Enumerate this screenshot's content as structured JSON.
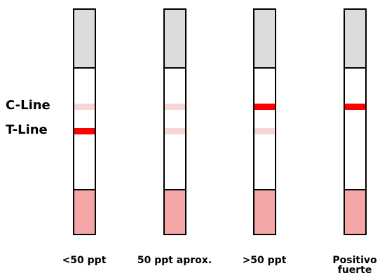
{
  "labels": {
    "c_line": "C-Line",
    "t_line": "T-Line"
  },
  "colors": {
    "pad_top": "#dcdcdc",
    "pad_bottom": "#f4a6a6",
    "line_strong": "#ff0000",
    "line_faint": "#f9d6d6"
  },
  "strips": [
    {
      "caption": "<50 ppt",
      "c_line": "faint",
      "t_line": "strong"
    },
    {
      "caption": "50 ppt aprox.",
      "c_line": "faint",
      "t_line": "faint"
    },
    {
      "caption": ">50 ppt",
      "c_line": "strong",
      "t_line": "faint"
    },
    {
      "caption": "Positivo fuerte",
      "c_line": "strong",
      "t_line": "none"
    }
  ]
}
